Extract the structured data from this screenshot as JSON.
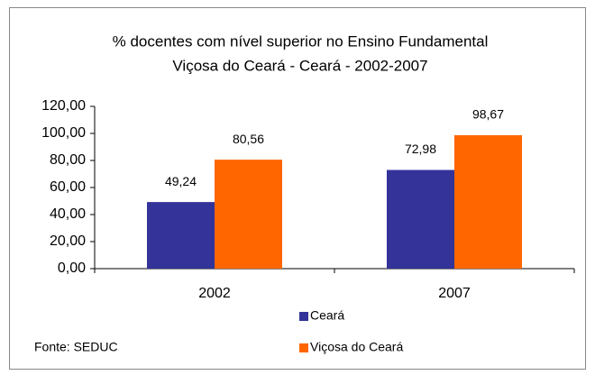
{
  "chart_data": {
    "type": "bar",
    "title": "% docentes com nível superior no Ensino Fundamental",
    "subtitle": "Viçosa do Ceará -  Ceará - 2002-2007",
    "categories": [
      "2002",
      "2007"
    ],
    "series": [
      {
        "name": "Ceará",
        "color": "#333399",
        "values": [
          49.24,
          72.98
        ],
        "value_labels": [
          "49,24",
          "72,98"
        ]
      },
      {
        "name": "Viçosa do Ceará",
        "color": "#ff6600",
        "values": [
          80.56,
          98.67
        ],
        "value_labels": [
          "80,56",
          "98,67"
        ]
      }
    ],
    "ylim": [
      0,
      120
    ],
    "yticks": [
      {
        "value": 0,
        "label": "0,00"
      },
      {
        "value": 20,
        "label": "20,00"
      },
      {
        "value": 40,
        "label": "40,00"
      },
      {
        "value": 60,
        "label": "60,00"
      },
      {
        "value": 80,
        "label": "80,00"
      },
      {
        "value": 100,
        "label": "100,00"
      },
      {
        "value": 120,
        "label": "120,00"
      }
    ],
    "grid": false,
    "legend": "bottom",
    "source": "Fonte: SEDUC"
  }
}
